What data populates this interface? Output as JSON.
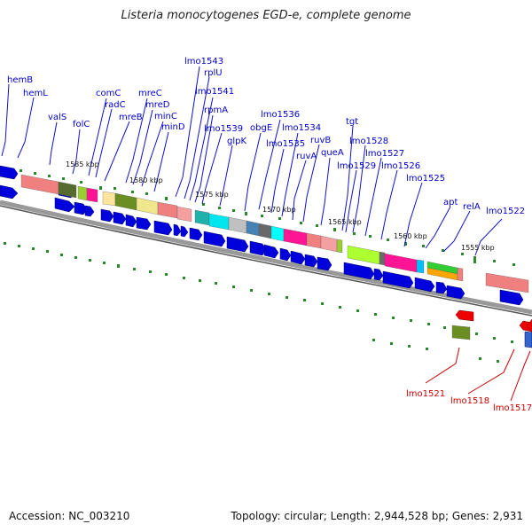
{
  "title": "Listeria monocytogenes EGD-e, complete genome",
  "footer": {
    "accession": "Accession: NC_003210",
    "topology": "Topology: circular; Length: 2,944,528 bp; Genes: 2,931"
  },
  "colors": {
    "forward_gene": "#0000dd",
    "reverse_gene": "#e00000",
    "label_blue": "#0000cc",
    "label_red": "#cc0000",
    "tick": "#228b22",
    "backbone": "#888888"
  },
  "ruler": [
    {
      "label": "1585 kbp"
    },
    {
      "label": "1580 kbp"
    },
    {
      "label": "1575 kbp"
    },
    {
      "label": "1570 kbp"
    },
    {
      "label": "1565 kbp"
    },
    {
      "label": "1560 kbp"
    },
    {
      "label": "1555 kbp"
    }
  ],
  "genes_blue": [
    "hemB",
    "hemL",
    "valS",
    "folC",
    "comC",
    "radC",
    "mreB",
    "mreC",
    "mreD",
    "minC",
    "minD",
    "lmo1543",
    "rplU",
    "lmo1541",
    "rpmA",
    "lmo1539",
    "glpK",
    "lmo1536",
    "obgE",
    "lmo1535",
    "lmo1534",
    "ruvB",
    "ruvA",
    "queA",
    "tgt",
    "lmo1529",
    "lmo1528",
    "lmo1527",
    "lmo1526",
    "lmo1525",
    "apt",
    "relA",
    "lmo1522"
  ],
  "genes_red": [
    "lmo1521",
    "lmo1518",
    "lmo1517"
  ]
}
